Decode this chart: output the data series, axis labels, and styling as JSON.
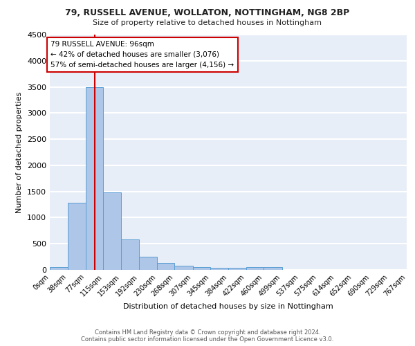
{
  "title1": "79, RUSSELL AVENUE, WOLLATON, NOTTINGHAM, NG8 2BP",
  "title2": "Size of property relative to detached houses in Nottingham",
  "xlabel": "Distribution of detached houses by size in Nottingham",
  "ylabel": "Number of detached properties",
  "bin_edges": [
    0,
    38,
    77,
    115,
    153,
    192,
    230,
    268,
    307,
    345,
    384,
    422,
    460,
    499,
    537,
    575,
    614,
    652,
    690,
    729,
    767
  ],
  "bin_counts": [
    50,
    1280,
    3500,
    1480,
    580,
    250,
    130,
    80,
    55,
    40,
    40,
    50,
    50,
    0,
    0,
    0,
    0,
    0,
    0,
    0
  ],
  "bar_color": "#aec6e8",
  "bar_edge_color": "#5a9fd4",
  "property_size": 96,
  "vline_color": "#cc0000",
  "annotation_text": "79 RUSSELL AVENUE: 96sqm\n← 42% of detached houses are smaller (3,076)\n57% of semi-detached houses are larger (4,156) →",
  "annotation_box_color": "#ffffff",
  "annotation_box_edge_color": "#cc0000",
  "ylim": [
    0,
    4500
  ],
  "tick_labels": [
    "0sqm",
    "38sqm",
    "77sqm",
    "115sqm",
    "153sqm",
    "192sqm",
    "230sqm",
    "268sqm",
    "307sqm",
    "345sqm",
    "384sqm",
    "422sqm",
    "460sqm",
    "499sqm",
    "537sqm",
    "575sqm",
    "614sqm",
    "652sqm",
    "690sqm",
    "729sqm",
    "767sqm"
  ],
  "footnote": "Contains HM Land Registry data © Crown copyright and database right 2024.\nContains public sector information licensed under the Open Government Licence v3.0.",
  "bg_color": "#e8eef8",
  "grid_color": "#ffffff"
}
